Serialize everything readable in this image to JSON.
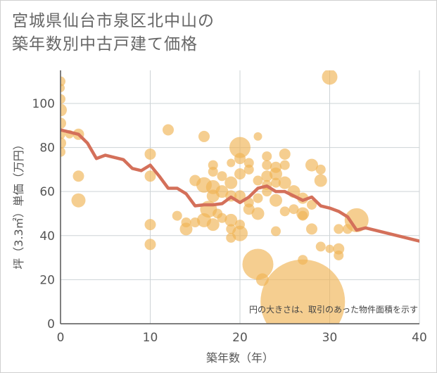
{
  "title_line1": "宮城県仙台市泉区北中山の",
  "title_line2": "築年数別中古戸建て価格",
  "colors": {
    "bubble": "#f0b355",
    "line": "#d4705a",
    "grid": "#cdd3d6"
  },
  "chart_data": {
    "type": "scatter",
    "title": "宮城県仙台市泉区北中山の築年数別中古戸建て価格",
    "xlabel": "築年数（年）",
    "ylabel": "坪（3.3㎡）単価（万円）",
    "xlim": [
      0,
      40
    ],
    "ylim": [
      0,
      115
    ],
    "xticks": [
      "0",
      "10",
      "20",
      "30",
      "40"
    ],
    "yticks": [
      "0",
      "20",
      "40",
      "60",
      "80",
      "100"
    ],
    "note": "円の大きさは、取引のあった物件面積を示す",
    "grid": true,
    "series": [
      {
        "type": "bubble",
        "points": [
          {
            "x": 0,
            "y": 110,
            "r": 7
          },
          {
            "x": 0,
            "y": 107,
            "r": 6
          },
          {
            "x": 0,
            "y": 102,
            "r": 7
          },
          {
            "x": 0,
            "y": 97,
            "r": 9
          },
          {
            "x": 0,
            "y": 91,
            "r": 8
          },
          {
            "x": 0,
            "y": 86,
            "r": 7
          },
          {
            "x": 0,
            "y": 82,
            "r": 8
          },
          {
            "x": 0,
            "y": 78,
            "r": 7
          },
          {
            "x": 1,
            "y": 86,
            "r": 6
          },
          {
            "x": 2,
            "y": 86,
            "r": 8
          },
          {
            "x": 2,
            "y": 67,
            "r": 8
          },
          {
            "x": 2,
            "y": 56,
            "r": 10
          },
          {
            "x": 10,
            "y": 77,
            "r": 8
          },
          {
            "x": 10,
            "y": 67,
            "r": 8
          },
          {
            "x": 10,
            "y": 45,
            "r": 8
          },
          {
            "x": 10,
            "y": 36,
            "r": 8
          },
          {
            "x": 12,
            "y": 88,
            "r": 8
          },
          {
            "x": 13,
            "y": 49,
            "r": 7
          },
          {
            "x": 14,
            "y": 43,
            "r": 9
          },
          {
            "x": 14,
            "y": 46,
            "r": 7
          },
          {
            "x": 15,
            "y": 65,
            "r": 8
          },
          {
            "x": 15,
            "y": 46,
            "r": 7
          },
          {
            "x": 16,
            "y": 85,
            "r": 8
          },
          {
            "x": 16,
            "y": 63,
            "r": 11
          },
          {
            "x": 16,
            "y": 47,
            "r": 10
          },
          {
            "x": 16.5,
            "y": 52,
            "r": 12
          },
          {
            "x": 17,
            "y": 72,
            "r": 7
          },
          {
            "x": 17,
            "y": 69,
            "r": 7
          },
          {
            "x": 17,
            "y": 62,
            "r": 10
          },
          {
            "x": 17,
            "y": 58,
            "r": 9
          },
          {
            "x": 17,
            "y": 45,
            "r": 9
          },
          {
            "x": 17.5,
            "y": 50,
            "r": 7
          },
          {
            "x": 18,
            "y": 67,
            "r": 7
          },
          {
            "x": 18,
            "y": 60,
            "r": 9
          },
          {
            "x": 18,
            "y": 48,
            "r": 7
          },
          {
            "x": 19,
            "y": 73,
            "r": 6
          },
          {
            "x": 19,
            "y": 64,
            "r": 9
          },
          {
            "x": 19,
            "y": 58,
            "r": 8
          },
          {
            "x": 19,
            "y": 47,
            "r": 9
          },
          {
            "x": 19,
            "y": 43,
            "r": 7
          },
          {
            "x": 19,
            "y": 39,
            "r": 7
          },
          {
            "x": 20,
            "y": 80,
            "r": 15
          },
          {
            "x": 20,
            "y": 75,
            "r": 8
          },
          {
            "x": 20,
            "y": 68,
            "r": 8
          },
          {
            "x": 20,
            "y": 58,
            "r": 8
          },
          {
            "x": 20,
            "y": 45,
            "r": 7
          },
          {
            "x": 20,
            "y": 41,
            "r": 11
          },
          {
            "x": 21,
            "y": 73,
            "r": 7
          },
          {
            "x": 21,
            "y": 70,
            "r": 7
          },
          {
            "x": 21,
            "y": 55,
            "r": 7
          },
          {
            "x": 21,
            "y": 52,
            "r": 8
          },
          {
            "x": 22,
            "y": 85,
            "r": 6
          },
          {
            "x": 22,
            "y": 65,
            "r": 7
          },
          {
            "x": 22,
            "y": 57,
            "r": 7
          },
          {
            "x": 22,
            "y": 50,
            "r": 9
          },
          {
            "x": 22,
            "y": 27,
            "r": 22
          },
          {
            "x": 22.5,
            "y": 20,
            "r": 9
          },
          {
            "x": 23,
            "y": 76,
            "r": 7
          },
          {
            "x": 23,
            "y": 72,
            "r": 7
          },
          {
            "x": 23,
            "y": 67,
            "r": 8
          },
          {
            "x": 23,
            "y": 63,
            "r": 7
          },
          {
            "x": 23,
            "y": 60,
            "r": 7
          },
          {
            "x": 24,
            "y": 71,
            "r": 8
          },
          {
            "x": 24,
            "y": 68,
            "r": 9
          },
          {
            "x": 24,
            "y": 64,
            "r": 7
          },
          {
            "x": 24,
            "y": 56,
            "r": 9
          },
          {
            "x": 24,
            "y": 42,
            "r": 7
          },
          {
            "x": 25,
            "y": 77,
            "r": 8
          },
          {
            "x": 25,
            "y": 72,
            "r": 7
          },
          {
            "x": 25,
            "y": 64,
            "r": 9
          },
          {
            "x": 25,
            "y": 51,
            "r": 7
          },
          {
            "x": 26,
            "y": 60,
            "r": 9
          },
          {
            "x": 26,
            "y": 52,
            "r": 7
          },
          {
            "x": 27,
            "y": 57,
            "r": 8
          },
          {
            "x": 27,
            "y": 50,
            "r": 9
          },
          {
            "x": 27,
            "y": 49,
            "r": 7
          },
          {
            "x": 27,
            "y": 29,
            "r": 7
          },
          {
            "x": 27,
            "y": 10,
            "r": 60
          },
          {
            "x": 28,
            "y": 72,
            "r": 9
          },
          {
            "x": 28,
            "y": 54,
            "r": 7
          },
          {
            "x": 28,
            "y": 43,
            "r": 8
          },
          {
            "x": 29,
            "y": 70,
            "r": 7
          },
          {
            "x": 29,
            "y": 65,
            "r": 9
          },
          {
            "x": 29,
            "y": 35,
            "r": 7
          },
          {
            "x": 30,
            "y": 112,
            "r": 11
          },
          {
            "x": 30,
            "y": 34,
            "r": 6
          },
          {
            "x": 31,
            "y": 43,
            "r": 7
          },
          {
            "x": 31,
            "y": 34,
            "r": 8
          },
          {
            "x": 31,
            "y": 31,
            "r": 7
          },
          {
            "x": 32,
            "y": 43,
            "r": 7
          },
          {
            "x": 33,
            "y": 47,
            "r": 17
          }
        ]
      },
      {
        "type": "line",
        "x": [
          0,
          1,
          2,
          3,
          4,
          5,
          6,
          7,
          8,
          9,
          10,
          11,
          12,
          13,
          14,
          15,
          16,
          17,
          18,
          19,
          20,
          21,
          22,
          23,
          24,
          25,
          26,
          27,
          28,
          29,
          30,
          31,
          32,
          33,
          34,
          35,
          36,
          37,
          38,
          39,
          40
        ],
        "y": [
          88,
          87,
          86,
          82,
          75,
          76.5,
          75.5,
          74.5,
          70.5,
          69.5,
          72,
          67,
          61.5,
          61.5,
          59,
          53.5,
          54,
          54,
          54.5,
          57.5,
          55,
          57.5,
          61.5,
          62.5,
          60,
          60,
          58,
          56,
          57.5,
          53.5,
          52.5,
          51,
          48.5,
          42.5,
          43.5,
          42.5,
          41.5,
          40.5,
          39.5,
          38.5,
          37.5
        ]
      }
    ]
  }
}
